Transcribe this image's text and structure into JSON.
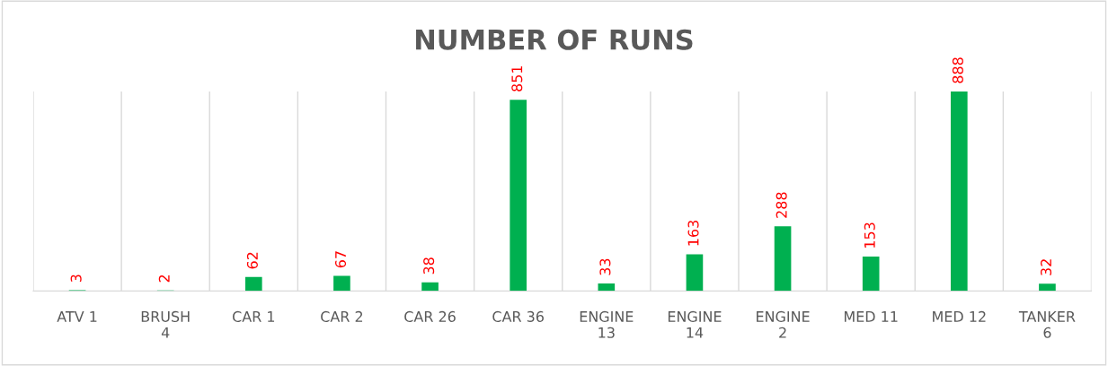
{
  "chart_data": {
    "type": "bar",
    "title": "NUMBER OF RUNS",
    "categories": [
      "ATV 1",
      "BRUSH 4",
      "CAR 1",
      "CAR 2",
      "CAR 26",
      "CAR 36",
      "ENGINE 13",
      "ENGINE 14",
      "ENGINE 2",
      "MED 11",
      "MED 12",
      "TANKER 6"
    ],
    "values": [
      3,
      2,
      62,
      67,
      38,
      851,
      33,
      163,
      288,
      153,
      888,
      32
    ],
    "color": "#00b050",
    "data_labels": true,
    "grid": "x",
    "legend": false
  }
}
